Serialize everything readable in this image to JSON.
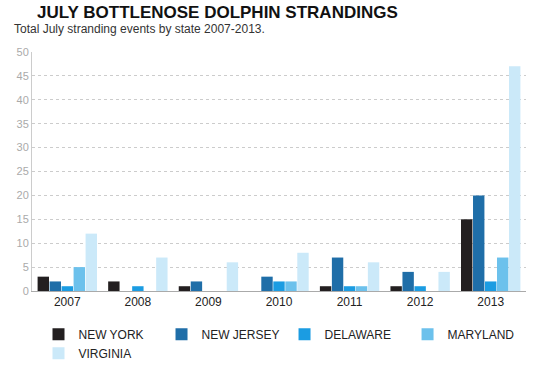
{
  "chart_data": {
    "type": "bar",
    "title": "JULY BOTTLENOSE DOLPHIN STRANDINGS",
    "subtitle": "Total July stranding events by state 2007-2013.",
    "categories": [
      "2007",
      "2008",
      "2009",
      "2010",
      "2011",
      "2012",
      "2013"
    ],
    "series": [
      {
        "name": "NEW YORK",
        "color": "#231f20",
        "values": [
          3,
          2,
          1,
          0,
          1,
          1,
          15
        ]
      },
      {
        "name": "NEW JERSEY",
        "color": "#1f6ea8",
        "values": [
          2,
          0,
          2,
          3,
          7,
          4,
          20
        ]
      },
      {
        "name": "DELAWARE",
        "color": "#1b9ce2",
        "values": [
          1,
          1,
          0,
          2,
          1,
          1,
          2
        ]
      },
      {
        "name": "MARYLAND",
        "color": "#6cc1ec",
        "values": [
          5,
          0,
          0,
          2,
          1,
          0,
          7
        ]
      },
      {
        "name": "VIRGINIA",
        "color": "#cbe9f9",
        "values": [
          12,
          7,
          6,
          8,
          6,
          4,
          47
        ]
      }
    ],
    "ylim": [
      0,
      50
    ],
    "yticks": [
      0,
      5,
      10,
      15,
      20,
      25,
      30,
      35,
      40,
      45,
      50
    ],
    "grid": true,
    "legend": "bottom"
  }
}
